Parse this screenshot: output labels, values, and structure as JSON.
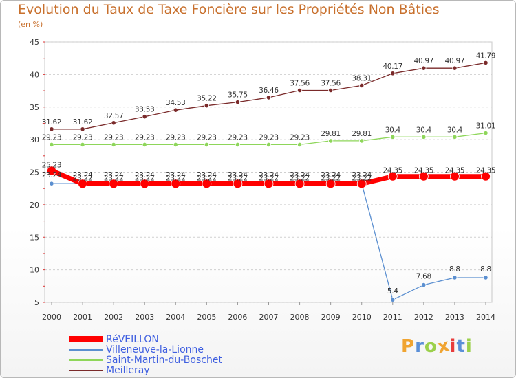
{
  "header": {
    "title": "Evolution du Taux de Taxe Foncière sur les Propriétés Non Bâties",
    "subtitle": "(en %)"
  },
  "brand": {
    "letters": [
      "P",
      "r",
      "o",
      "x",
      "i",
      "t",
      "i"
    ],
    "colors": [
      "#f0a431",
      "#5a8fd8",
      "#9bd04b",
      "#f0a431",
      "#e83c3c",
      "#5a8fd8",
      "#9bd04b"
    ]
  },
  "chart_data": {
    "type": "line",
    "title": "Evolution du Taux de Taxe Foncière sur les Propriétés Non Bâties",
    "ylabel": "(en %)",
    "xlabel": "",
    "ylim": [
      5,
      45
    ],
    "yticks": [
      5,
      10,
      15,
      20,
      25,
      30,
      35,
      40,
      45
    ],
    "grid": "horizontal dashed",
    "categories": [
      "2000",
      "2001",
      "2002",
      "2003",
      "2004",
      "2005",
      "2006",
      "2007",
      "2008",
      "2009",
      "2010",
      "2011",
      "2012",
      "2013",
      "2014"
    ],
    "series": [
      {
        "name": "Meilleray",
        "color": "#7a2a2a",
        "values": [
          31.62,
          31.62,
          32.57,
          33.53,
          34.53,
          35.22,
          35.75,
          36.46,
          37.56,
          37.56,
          38.31,
          40.17,
          40.97,
          40.97,
          41.79
        ],
        "labels": [
          "31.62",
          "31.62",
          "32.57",
          "33.53",
          "34.53",
          "35.22",
          "35.75",
          "36.46",
          "37.56",
          "37.56",
          "38.31",
          "40.17",
          "40.97",
          "40.97",
          "41.79"
        ]
      },
      {
        "name": "Saint-Martin-du-Boschet",
        "color": "#8ed65a",
        "values": [
          29.23,
          29.23,
          29.23,
          29.23,
          29.23,
          29.23,
          29.23,
          29.23,
          29.23,
          29.81,
          29.81,
          30.4,
          30.4,
          30.4,
          31.01
        ],
        "labels": [
          "29.23",
          "29.23",
          "29.23",
          "29.23",
          "29.23",
          "29.23",
          "29.23",
          "29.23",
          "29.23",
          "29.81",
          "29.81",
          "30.4",
          "30.4",
          "30.4",
          "31.01"
        ]
      },
      {
        "name": "Villeneuve-la-Lionne",
        "color": "#5b8fd0",
        "values": [
          23.24,
          23.24,
          23.24,
          23.24,
          23.24,
          23.24,
          23.24,
          23.24,
          23.24,
          23.24,
          23.24,
          5.4,
          7.68,
          8.8,
          8.8
        ],
        "labels": [
          "23.24",
          "23.24",
          "23.24",
          "23.24",
          "23.24",
          "23.24",
          "23.24",
          "23.24",
          "23.24",
          "23.24",
          "23.24",
          "5.4",
          "7.68",
          "8.8",
          "8.8"
        ]
      },
      {
        "name": "RéVEILLON",
        "color": "#ff0000",
        "values": [
          25.23,
          23.22,
          23.22,
          23.22,
          23.22,
          23.22,
          23.22,
          23.22,
          23.22,
          23.22,
          23.22,
          24.35,
          24.35,
          24.35,
          24.35
        ],
        "labels": [
          "25.23",
          "23.22",
          "23.22",
          "23.22",
          "23.22",
          "23.22",
          "23.22",
          "23.22",
          "23.22",
          "23.22",
          "23.22",
          "24.35",
          "24.35",
          "24.35",
          "24.35"
        ]
      }
    ],
    "legend": {
      "placement": "bottom-left",
      "entries": [
        "RéVEILLON",
        "Villeneuve-la-Lionne",
        "Saint-Martin-du-Boschet",
        "Meilleray"
      ]
    }
  }
}
